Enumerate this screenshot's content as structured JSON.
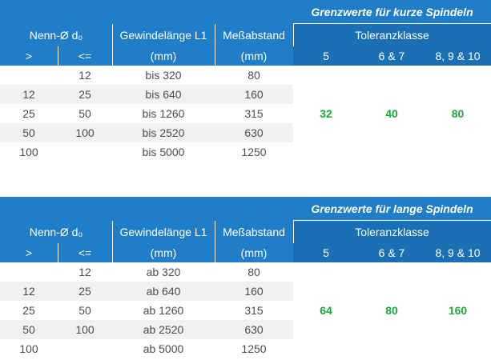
{
  "tables": [
    {
      "title": "Grenzwerte für kurze Spindeln",
      "headers": {
        "nenn": "Nenn-Ø d₀",
        "gewinde": "Gewindelänge L1",
        "messabstand": "Meßabstand",
        "toleranz": "Toleranzklasse",
        "gt": ">",
        "le": "<=",
        "mm1": "(mm)",
        "mm2": "(mm)",
        "k5": "5",
        "k67": "6 & 7",
        "k8910": "8, 9 & 10"
      },
      "rows": [
        {
          "gt": "",
          "le": "12",
          "length": "bis 320",
          "dist": "80"
        },
        {
          "gt": "12",
          "le": "25",
          "length": "bis 640",
          "dist": "160"
        },
        {
          "gt": "25",
          "le": "50",
          "length": "bis 1260",
          "dist": "315"
        },
        {
          "gt": "50",
          "le": "100",
          "length": "bis 2520",
          "dist": "630"
        },
        {
          "gt": "100",
          "le": "",
          "length": "bis 5000",
          "dist": "1250"
        }
      ],
      "limits": {
        "k5": "32",
        "k67": "40",
        "k8910": "80"
      }
    },
    {
      "title": "Grenzwerte für lange Spindeln",
      "headers": {
        "nenn": "Nenn-Ø d₀",
        "gewinde": "Gewindelänge L1",
        "messabstand": "Meßabstand",
        "toleranz": "Toleranzklasse",
        "gt": ">",
        "le": "<=",
        "mm1": "(mm)",
        "mm2": "(mm)",
        "k5": "5",
        "k67": "6 & 7",
        "k8910": "8, 9 & 10"
      },
      "rows": [
        {
          "gt": "",
          "le": "12",
          "length": "ab 320",
          "dist": "80"
        },
        {
          "gt": "12",
          "le": "25",
          "length": "ab 640",
          "dist": "160"
        },
        {
          "gt": "25",
          "le": "50",
          "length": "ab 1260",
          "dist": "315"
        },
        {
          "gt": "50",
          "le": "100",
          "length": "ab 2520",
          "dist": "630"
        },
        {
          "gt": "100",
          "le": "",
          "length": "ab 5000",
          "dist": "1250"
        }
      ],
      "limits": {
        "k5": "64",
        "k67": "80",
        "k8910": "160"
      }
    }
  ]
}
